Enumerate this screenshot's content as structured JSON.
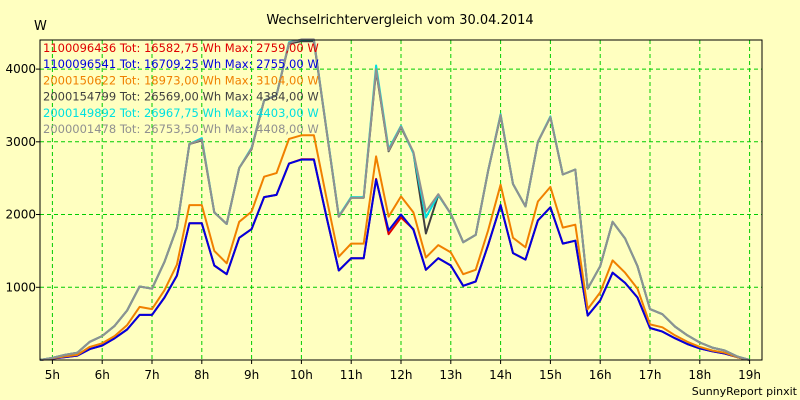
{
  "chart_data": {
    "type": "line",
    "title": "Wechselrichtervergleich vom 30.04.2014",
    "ylabel": "W",
    "xlabel": "",
    "footer": "SunnyReport pinxit",
    "ylim": [
      0,
      4400
    ],
    "xlim": [
      4.75,
      19.25
    ],
    "grid": true,
    "legend_position": "top-left",
    "y_ticks": [
      1000,
      2000,
      3000,
      4000
    ],
    "x_ticks": [
      {
        "value": 5,
        "label": "5h"
      },
      {
        "value": 6,
        "label": "6h"
      },
      {
        "value": 7,
        "label": "7h"
      },
      {
        "value": 8,
        "label": "8h"
      },
      {
        "value": 9,
        "label": "9h"
      },
      {
        "value": 10,
        "label": "10h"
      },
      {
        "value": 11,
        "label": "11h"
      },
      {
        "value": 12,
        "label": "12h"
      },
      {
        "value": 13,
        "label": "13h"
      },
      {
        "value": 14,
        "label": "14h"
      },
      {
        "value": 15,
        "label": "15h"
      },
      {
        "value": 16,
        "label": "16h"
      },
      {
        "value": 17,
        "label": "17h"
      },
      {
        "value": 18,
        "label": "18h"
      },
      {
        "value": 19,
        "label": "19h"
      }
    ],
    "x": [
      4.75,
      5,
      5.25,
      5.5,
      5.75,
      6,
      6.25,
      6.5,
      6.75,
      7,
      7.25,
      7.5,
      7.75,
      8,
      8.25,
      8.5,
      8.75,
      9,
      9.25,
      9.5,
      9.75,
      10,
      10.25,
      10.5,
      10.75,
      11,
      11.25,
      11.5,
      11.75,
      12,
      12.25,
      12.5,
      12.75,
      13,
      13.25,
      13.5,
      13.75,
      14,
      14.25,
      14.5,
      14.75,
      15,
      15.25,
      15.5,
      15.75,
      16,
      16.25,
      16.5,
      16.75,
      17,
      17.25,
      17.5,
      17.75,
      18,
      18.25,
      18.5,
      18.75,
      19
    ],
    "series": [
      {
        "name": "1100096436",
        "legend": "1100096436 Tot: 16582,75 Wh Max: 2759,00 W",
        "color": "#e00000",
        "values": [
          0,
          20,
          40,
          60,
          150,
          200,
          300,
          420,
          620,
          620,
          860,
          1160,
          1880,
          1880,
          1300,
          1180,
          1680,
          1800,
          2240,
          2270,
          2700,
          2759,
          2759,
          1980,
          1230,
          1400,
          1400,
          2490,
          1730,
          1960,
          1800,
          1240,
          1400,
          1300,
          1020,
          1080,
          1580,
          2130,
          1470,
          1380,
          1920,
          2100,
          1600,
          1640,
          610,
          820,
          1200,
          1060,
          860,
          440,
          390,
          300,
          220,
          160,
          120,
          90,
          40,
          0
        ]
      },
      {
        "name": "1100096541",
        "legend": "1100096541 Tot: 16709,25 Wh Max: 2755,00 W",
        "color": "#0000e0",
        "values": [
          0,
          20,
          40,
          60,
          150,
          200,
          300,
          420,
          620,
          620,
          860,
          1160,
          1880,
          1880,
          1300,
          1180,
          1680,
          1800,
          2240,
          2270,
          2700,
          2755,
          2755,
          1980,
          1230,
          1400,
          1400,
          2480,
          1780,
          2000,
          1790,
          1240,
          1400,
          1300,
          1020,
          1080,
          1580,
          2130,
          1470,
          1380,
          1920,
          2100,
          1600,
          1640,
          610,
          820,
          1200,
          1060,
          860,
          440,
          390,
          300,
          220,
          160,
          120,
          90,
          40,
          0
        ]
      },
      {
        "name": "2000150622",
        "legend": "2000150622 Tot: 18973,00 Wh Max: 3104,00 W",
        "color": "#f08000",
        "values": [
          0,
          25,
          50,
          70,
          180,
          230,
          330,
          480,
          730,
          700,
          960,
          1310,
          2130,
          2130,
          1500,
          1330,
          1900,
          2040,
          2520,
          2570,
          3040,
          3090,
          3090,
          2240,
          1420,
          1600,
          1600,
          2800,
          1970,
          2250,
          2030,
          1410,
          1580,
          1480,
          1180,
          1240,
          1780,
          2410,
          1680,
          1550,
          2180,
          2380,
          1820,
          1860,
          700,
          930,
          1370,
          1200,
          980,
          490,
          450,
          340,
          250,
          180,
          130,
          100,
          40,
          0
        ]
      },
      {
        "name": "2000154799",
        "legend": "2000154799 Tot: 26569,00 Wh Max: 4384,00 W",
        "color": "#404040",
        "values": [
          0,
          30,
          70,
          100,
          250,
          330,
          470,
          680,
          1010,
          980,
          1350,
          1820,
          2970,
          3020,
          2030,
          1870,
          2640,
          2900,
          3570,
          3640,
          4350,
          4384,
          4384,
          3180,
          1970,
          2230,
          2230,
          3980,
          2870,
          3200,
          2850,
          1740,
          2270,
          2010,
          1620,
          1720,
          2600,
          3360,
          2420,
          2110,
          3000,
          3340,
          2550,
          2620,
          980,
          1290,
          1900,
          1670,
          1290,
          700,
          630,
          460,
          340,
          240,
          170,
          130,
          50,
          0
        ]
      },
      {
        "name": "2000149892",
        "legend": "2000149892 Tot: 26967,75 Wh Max: 4403,00 W",
        "color": "#00e0e0",
        "values": [
          0,
          30,
          70,
          100,
          250,
          330,
          470,
          680,
          1010,
          980,
          1350,
          1820,
          2970,
          3050,
          2030,
          1870,
          2640,
          2920,
          3570,
          3640,
          4370,
          4403,
          4403,
          3190,
          1980,
          2240,
          2240,
          4050,
          2900,
          3220,
          2840,
          1960,
          2270,
          2010,
          1620,
          1720,
          2600,
          3380,
          2420,
          2110,
          3000,
          3350,
          2550,
          2620,
          980,
          1290,
          1900,
          1670,
          1290,
          700,
          630,
          460,
          340,
          240,
          170,
          130,
          50,
          0
        ]
      },
      {
        "name": "2000001478",
        "legend": "2000001478 Tot: 26753,50 Wh Max: 4408,00 W",
        "color": "#909090",
        "values": [
          0,
          30,
          70,
          100,
          250,
          330,
          470,
          680,
          1010,
          980,
          1350,
          1820,
          2970,
          3030,
          2030,
          1870,
          2640,
          2910,
          3570,
          3640,
          4360,
          4408,
          4408,
          3180,
          1970,
          2230,
          2230,
          4000,
          2880,
          3210,
          2860,
          2040,
          2280,
          2010,
          1620,
          1720,
          2600,
          3370,
          2420,
          2110,
          3000,
          3340,
          2550,
          2620,
          980,
          1290,
          1900,
          1670,
          1290,
          700,
          630,
          460,
          340,
          240,
          170,
          130,
          50,
          0
        ]
      }
    ]
  }
}
